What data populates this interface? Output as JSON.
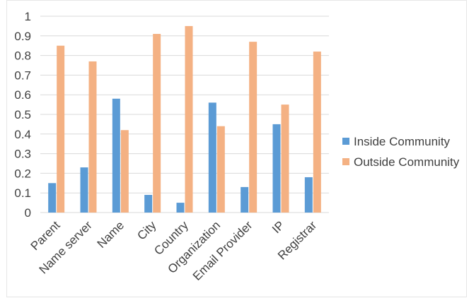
{
  "chart_data": {
    "type": "bar",
    "title": "",
    "xlabel": "",
    "ylabel": "",
    "ylim": [
      0,
      1
    ],
    "yticks": [
      "0",
      "0.1",
      "0.2",
      "0.3",
      "0.4",
      "0.5",
      "0.6",
      "0.7",
      "0.8",
      "0.9",
      "1"
    ],
    "grid": true,
    "legend_position": "right",
    "categories": [
      "Parent",
      "Name server",
      "Name",
      "City",
      "Country",
      "Organization",
      "Email Provider",
      "IP",
      "Registrar"
    ],
    "series": [
      {
        "name": "Inside Community",
        "color": "#5b9bd5",
        "values": [
          0.15,
          0.23,
          0.58,
          0.09,
          0.05,
          0.56,
          0.13,
          0.45,
          0.18
        ]
      },
      {
        "name": "Outside Community",
        "color": "#f4b183",
        "values": [
          0.85,
          0.77,
          0.42,
          0.91,
          0.95,
          0.44,
          0.87,
          0.55,
          0.82
        ]
      }
    ]
  }
}
